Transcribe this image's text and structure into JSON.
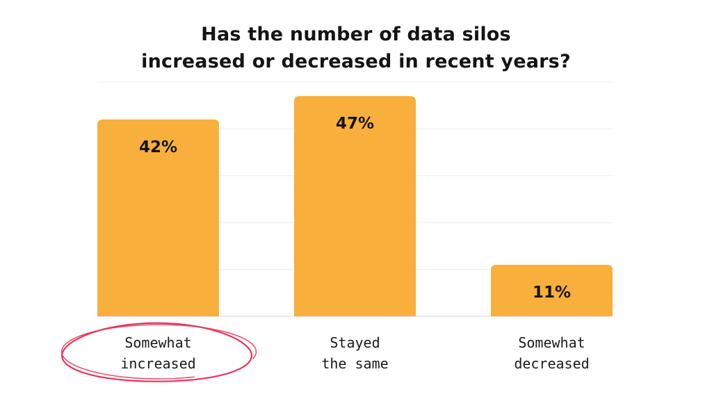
{
  "chart_data": {
    "type": "bar",
    "title": [
      "Has the number of data silos",
      "increased or decreased in recent years?"
    ],
    "categories": [
      [
        "Somewhat",
        "increased"
      ],
      [
        "Stayed",
        "the same"
      ],
      [
        "Somewhat",
        "decreased"
      ]
    ],
    "values": [
      42,
      47,
      11
    ],
    "value_labels": [
      "42%",
      "47%",
      "11%"
    ],
    "ylim": [
      0,
      50
    ],
    "grid": true,
    "bar_color": "#F8AF3C",
    "highlight": {
      "category_index": 0,
      "shape": "hand-drawn circle",
      "color": "#E8335A"
    }
  }
}
